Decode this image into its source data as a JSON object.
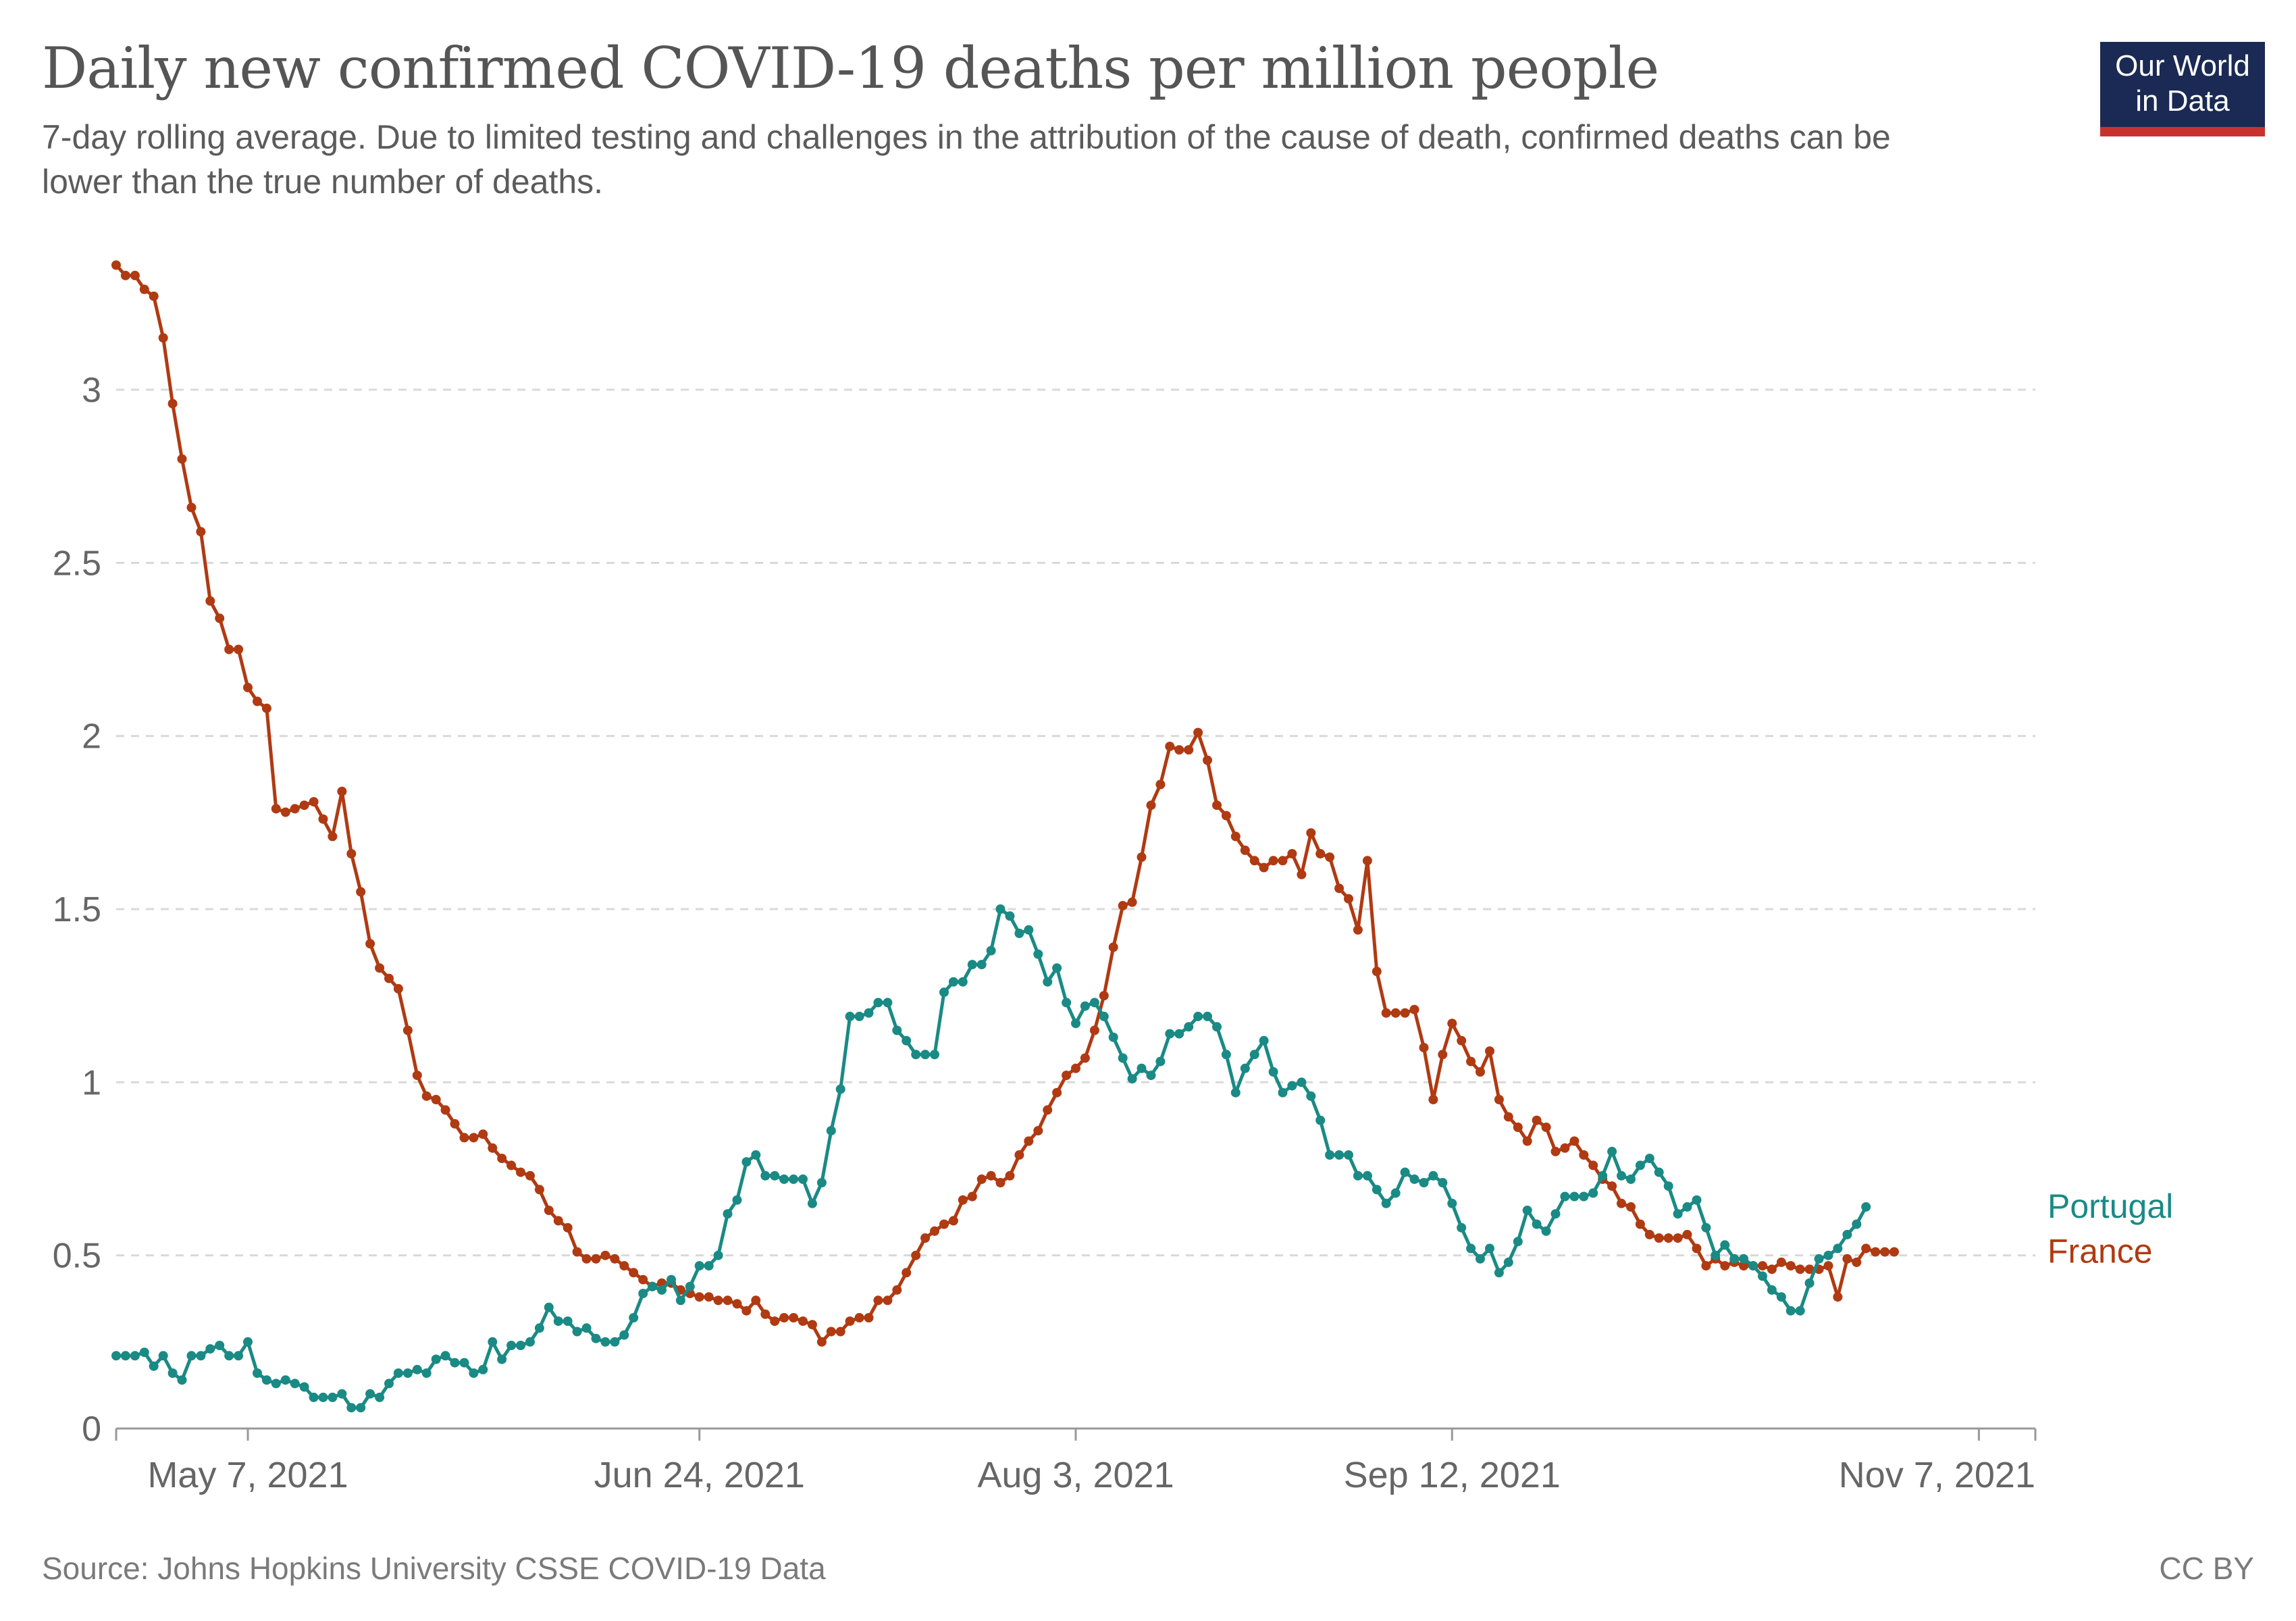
{
  "header": {
    "title": "Daily new confirmed COVID-19 deaths per million people",
    "subtitle": "7-day rolling average. Due to limited testing and challenges in the attribution of the cause of death, confirmed deaths can be lower than the true number of deaths.",
    "logo_line1": "Our World",
    "logo_line2": "in Data"
  },
  "footer": {
    "source": "Source: Johns Hopkins University CSSE COVID-19 Data",
    "license": "CC BY"
  },
  "colors": {
    "portugal": "#1a8a85",
    "france": "#b03a12",
    "grid": "#d9d9d9",
    "axis_text": "#666666"
  },
  "chart_data": {
    "type": "line",
    "title": "Daily new confirmed COVID-19 deaths per million people",
    "xlabel": "",
    "ylabel": "",
    "x_start": "2021-04-23",
    "x_end": "2021-11-13",
    "ylim": [
      0,
      3.4
    ],
    "y_ticks": [
      0,
      0.5,
      1,
      1.5,
      2,
      2.5,
      3
    ],
    "y_tick_labels": [
      "0",
      "0.5",
      "1",
      "1.5",
      "2",
      "2.5",
      "3"
    ],
    "x_ticks": [
      {
        "date": "2021-05-07",
        "label": "May 7, 2021"
      },
      {
        "date": "2021-06-24",
        "label": "Jun 24, 2021"
      },
      {
        "date": "2021-08-03",
        "label": "Aug 3, 2021"
      },
      {
        "date": "2021-09-12",
        "label": "Sep 12, 2021"
      },
      {
        "date": "2021-11-07",
        "label": "Nov 7, 2021"
      }
    ],
    "grid": true,
    "legend": "inline-right",
    "series": [
      {
        "name": "France",
        "color_key": "france",
        "values": [
          3.36,
          3.33,
          3.33,
          3.29,
          3.27,
          3.15,
          2.96,
          2.8,
          2.66,
          2.59,
          2.39,
          2.34,
          2.25,
          2.25,
          2.14,
          2.1,
          2.08,
          1.79,
          1.78,
          1.79,
          1.8,
          1.81,
          1.76,
          1.71,
          1.84,
          1.66,
          1.55,
          1.4,
          1.33,
          1.3,
          1.27,
          1.15,
          1.02,
          0.96,
          0.95,
          0.92,
          0.88,
          0.84,
          0.84,
          0.85,
          0.81,
          0.78,
          0.76,
          0.74,
          0.73,
          0.69,
          0.63,
          0.6,
          0.58,
          0.51,
          0.49,
          0.49,
          0.5,
          0.49,
          0.47,
          0.45,
          0.43,
          0.41,
          0.42,
          0.42,
          0.4,
          0.39,
          0.38,
          0.38,
          0.37,
          0.37,
          0.36,
          0.34,
          0.37,
          0.33,
          0.31,
          0.32,
          0.32,
          0.31,
          0.3,
          0.25,
          0.28,
          0.28,
          0.31,
          0.32,
          0.32,
          0.37,
          0.37,
          0.4,
          0.45,
          0.5,
          0.55,
          0.57,
          0.59,
          0.6,
          0.66,
          0.67,
          0.72,
          0.73,
          0.71,
          0.73,
          0.79,
          0.83,
          0.86,
          0.92,
          0.97,
          1.02,
          1.04,
          1.07,
          1.15,
          1.25,
          1.39,
          1.51,
          1.52,
          1.65,
          1.8,
          1.86,
          1.97,
          1.96,
          1.96,
          2.01,
          1.93,
          1.8,
          1.77,
          1.71,
          1.67,
          1.64,
          1.62,
          1.64,
          1.64,
          1.66,
          1.6,
          1.72,
          1.66,
          1.65,
          1.56,
          1.53,
          1.44,
          1.64,
          1.32,
          1.2,
          1.2,
          1.2,
          1.21,
          1.1,
          0.95,
          1.08,
          1.17,
          1.12,
          1.06,
          1.03,
          1.09,
          0.95,
          0.9,
          0.87,
          0.83,
          0.89,
          0.87,
          0.8,
          0.81,
          0.83,
          0.79,
          0.76,
          0.72,
          0.7,
          0.65,
          0.64,
          0.59,
          0.56,
          0.55,
          0.55,
          0.55,
          0.56,
          0.52,
          0.47,
          0.49,
          0.47,
          0.48,
          0.47,
          0.47,
          0.47,
          0.46,
          0.48,
          0.47,
          0.46,
          0.46,
          0.46,
          0.47,
          0.38,
          0.49,
          0.48,
          0.52,
          0.51,
          0.51,
          0.51
        ]
      },
      {
        "name": "Portugal",
        "color_key": "portugal",
        "values": [
          0.21,
          0.21,
          0.21,
          0.22,
          0.18,
          0.21,
          0.16,
          0.14,
          0.21,
          0.21,
          0.23,
          0.24,
          0.21,
          0.21,
          0.25,
          0.16,
          0.14,
          0.13,
          0.14,
          0.13,
          0.12,
          0.09,
          0.09,
          0.09,
          0.1,
          0.06,
          0.06,
          0.1,
          0.09,
          0.13,
          0.16,
          0.16,
          0.17,
          0.16,
          0.2,
          0.21,
          0.19,
          0.19,
          0.16,
          0.17,
          0.25,
          0.2,
          0.24,
          0.24,
          0.25,
          0.29,
          0.35,
          0.31,
          0.31,
          0.28,
          0.29,
          0.26,
          0.25,
          0.25,
          0.27,
          0.32,
          0.39,
          0.41,
          0.4,
          0.43,
          0.37,
          0.41,
          0.47,
          0.47,
          0.5,
          0.62,
          0.66,
          0.77,
          0.79,
          0.73,
          0.73,
          0.72,
          0.72,
          0.72,
          0.65,
          0.71,
          0.86,
          0.98,
          1.19,
          1.19,
          1.2,
          1.23,
          1.23,
          1.15,
          1.12,
          1.08,
          1.08,
          1.08,
          1.26,
          1.29,
          1.29,
          1.34,
          1.34,
          1.38,
          1.5,
          1.48,
          1.43,
          1.44,
          1.37,
          1.29,
          1.33,
          1.23,
          1.17,
          1.22,
          1.23,
          1.19,
          1.13,
          1.07,
          1.01,
          1.04,
          1.02,
          1.06,
          1.14,
          1.14,
          1.16,
          1.19,
          1.19,
          1.16,
          1.08,
          0.97,
          1.04,
          1.08,
          1.12,
          1.03,
          0.97,
          0.99,
          1.0,
          0.96,
          0.89,
          0.79,
          0.79,
          0.79,
          0.73,
          0.73,
          0.69,
          0.65,
          0.68,
          0.74,
          0.72,
          0.71,
          0.73,
          0.71,
          0.65,
          0.58,
          0.52,
          0.49,
          0.52,
          0.45,
          0.48,
          0.54,
          0.63,
          0.59,
          0.57,
          0.62,
          0.67,
          0.67,
          0.67,
          0.68,
          0.73,
          0.8,
          0.73,
          0.72,
          0.76,
          0.78,
          0.74,
          0.7,
          0.62,
          0.64,
          0.66,
          0.58,
          0.5,
          0.53,
          0.49,
          0.49,
          0.47,
          0.44,
          0.4,
          0.38,
          0.34,
          0.34,
          0.42,
          0.49,
          0.5,
          0.52,
          0.56,
          0.59,
          0.64
        ]
      }
    ]
  }
}
